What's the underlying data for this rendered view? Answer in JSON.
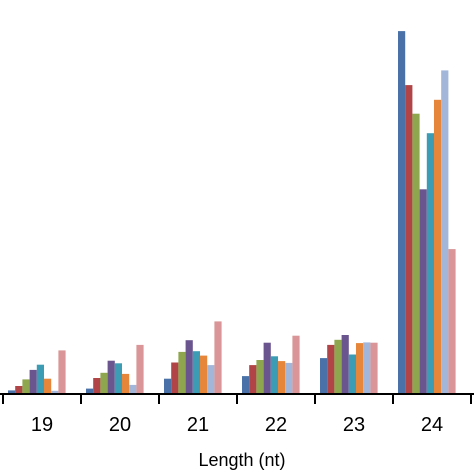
{
  "chart_data": {
    "type": "bar",
    "title": "",
    "xlabel": "Length (nt)",
    "ylabel": "",
    "categories": [
      "19",
      "20",
      "21",
      "22",
      "23",
      "24"
    ],
    "ylim": [
      0,
      100
    ],
    "grid": false,
    "legend": "none",
    "series": [
      {
        "color": "#4a72a8",
        "values": [
          0.7,
          1.2,
          3.9,
          4.6,
          9.5,
          98.6
        ]
      },
      {
        "color": "#b04446",
        "values": [
          1.9,
          4.1,
          8.3,
          7.6,
          13.1,
          83.9
        ]
      },
      {
        "color": "#8ea74e",
        "values": [
          3.7,
          5.5,
          11.2,
          9.0,
          14.5,
          76.1
        ]
      },
      {
        "color": "#6a558f",
        "values": [
          6.3,
          8.8,
          14.4,
          13.7,
          15.8,
          55.5
        ]
      },
      {
        "color": "#3c9cb4",
        "values": [
          7.7,
          8.1,
          11.4,
          10.0,
          10.5,
          70.8
        ]
      },
      {
        "color": "#e5863a",
        "values": [
          3.9,
          5.2,
          10.2,
          8.7,
          13.6,
          79.9
        ]
      },
      {
        "color": "#a2b6d9",
        "values": [
          0.6,
          2.2,
          7.6,
          8.2,
          13.8,
          87.9
        ]
      },
      {
        "color": "#d99597",
        "values": [
          11.6,
          13.1,
          19.5,
          15.6,
          13.7,
          39.2
        ]
      }
    ]
  }
}
